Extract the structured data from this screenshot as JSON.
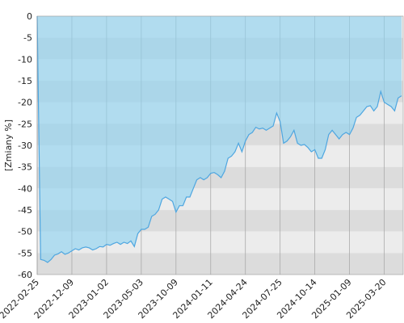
{
  "chart_data": {
    "type": "area",
    "y_label": "[Zmiany %]",
    "categories": [
      "2022-02-25",
      null,
      null,
      null,
      null,
      null,
      null,
      null,
      null,
      null,
      "2022-12-09",
      null,
      null,
      null,
      null,
      null,
      null,
      null,
      null,
      null,
      "2023-01-02",
      null,
      null,
      null,
      null,
      null,
      null,
      null,
      null,
      null,
      "2023-05-03",
      null,
      null,
      null,
      null,
      null,
      null,
      null,
      null,
      null,
      "2023-10-09",
      null,
      null,
      null,
      null,
      null,
      null,
      null,
      null,
      null,
      "2024-01-11",
      null,
      null,
      null,
      null,
      null,
      null,
      null,
      null,
      null,
      "2024-04-24",
      null,
      null,
      null,
      null,
      null,
      null,
      null,
      null,
      null,
      "2024-07-25",
      null,
      null,
      null,
      null,
      null,
      null,
      null,
      null,
      null,
      "2024-10-14",
      null,
      null,
      null,
      null,
      null,
      null,
      null,
      null,
      null,
      "2025-01-09",
      null,
      null,
      null,
      null,
      null,
      null,
      null,
      null,
      null,
      "2025-03-20",
      null,
      null,
      null,
      null,
      null
    ],
    "values": [
      0,
      -56.5,
      -56.7,
      -57.2,
      -56.5,
      -55.5,
      -55.2,
      -54.7,
      -55.3,
      -55,
      -54.5,
      -54,
      -54.3,
      -53.8,
      -53.6,
      -53.8,
      -54.3,
      -54,
      -53.5,
      -53.6,
      -53,
      -53.2,
      -52.8,
      -52.5,
      -53,
      -52.5,
      -52.8,
      -52.2,
      -53.5,
      -50.5,
      -49.5,
      -49.5,
      -49,
      -46.5,
      -46,
      -45,
      -42.5,
      -42,
      -42.5,
      -43,
      -45.5,
      -44,
      -44,
      -42,
      -42,
      -40,
      -38,
      -37.5,
      -38,
      -37.5,
      -36.5,
      -36.3,
      -36.8,
      -37.5,
      -36,
      -33,
      -32.5,
      -31.5,
      -29.5,
      -31.5,
      -29,
      -27.5,
      -27,
      -25.8,
      -26.2,
      -26,
      -26.5,
      -26,
      -25.5,
      -22.5,
      -24.5,
      -29.5,
      -29,
      -28,
      -26.5,
      -29.5,
      -30,
      -29.8,
      -30.5,
      -31.5,
      -31,
      -33,
      -33,
      -31,
      -27.5,
      -26.5,
      -27.5,
      -28.5,
      -27.5,
      -27,
      -27.5,
      -26,
      -23.5,
      -23,
      -22,
      -21,
      -20.8,
      -22,
      -21,
      -17.5,
      -20,
      -20.5,
      -21,
      -22,
      -19,
      -18.5
    ],
    "color": "#4ea6e0",
    "ylim": [
      -60,
      0
    ],
    "yticks": [
      0,
      -5,
      -10,
      -15,
      -20,
      -25,
      -30,
      -35,
      -40,
      -45,
      -50,
      -55,
      -60
    ],
    "grid": true
  }
}
